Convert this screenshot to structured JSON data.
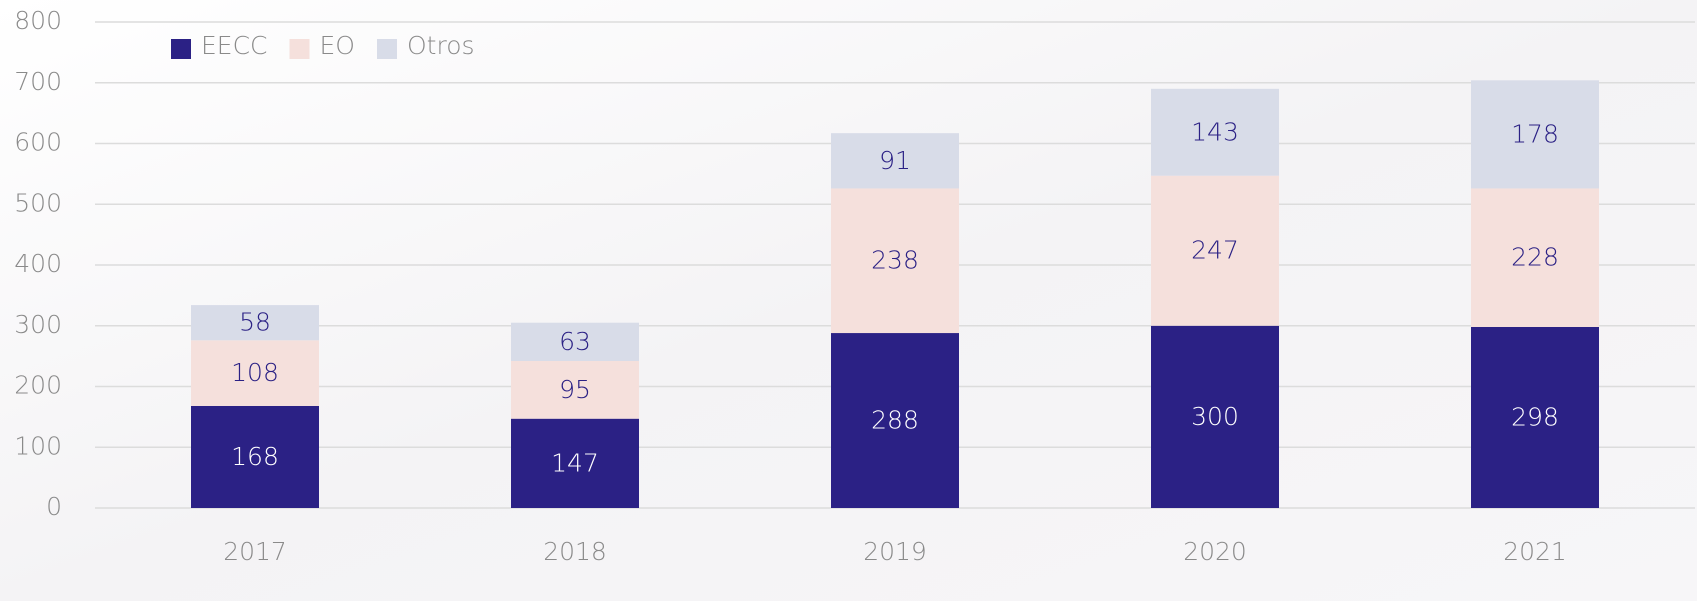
{
  "chart_data": {
    "type": "bar",
    "stacked": true,
    "categories": [
      "2017",
      "2018",
      "2019",
      "2020",
      "2021"
    ],
    "series": [
      {
        "name": "EECC",
        "color": "#2b2185",
        "label_color": "#ffffff",
        "values": [
          168,
          147,
          288,
          300,
          298
        ]
      },
      {
        "name": "EO",
        "color": "#f5e0dc",
        "label_color": "#2b2185",
        "values": [
          108,
          95,
          238,
          247,
          228
        ]
      },
      {
        "name": "Otros",
        "color": "#d8dce8",
        "label_color": "#2b2185",
        "values": [
          58,
          63,
          91,
          143,
          178
        ]
      }
    ],
    "ylim": [
      0,
      800
    ],
    "yticks": [
      0,
      100,
      200,
      300,
      400,
      500,
      600,
      700,
      800
    ],
    "grid": true,
    "legend": "top-left"
  }
}
